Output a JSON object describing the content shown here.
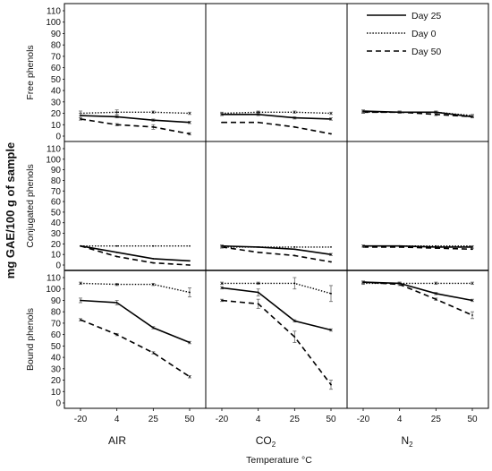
{
  "chart_data": {
    "type": "line",
    "ylabel": "mg GAE/100 g of sample",
    "xlabel": "Temperature °C",
    "categories": [
      "-20",
      "4",
      "25",
      "50"
    ],
    "yticks": [
      0,
      10,
      20,
      30,
      40,
      50,
      60,
      70,
      80,
      90,
      100,
      110
    ],
    "ylim": [
      0,
      110
    ],
    "atmospheres": [
      {
        "name": "AIR",
        "base": "AIR",
        "sub": ""
      },
      {
        "name": "CO2",
        "base": "CO",
        "sub": "2"
      },
      {
        "name": "N2",
        "base": "N",
        "sub": "2"
      }
    ],
    "rows": [
      "Free phenols",
      "Conjugated phenols",
      "Bound phenols"
    ],
    "legend": [
      "Day 25",
      "Day 0",
      "Day 50"
    ],
    "legend_position": "top-right",
    "series_styles": {
      "Day 25": {
        "dash": "solid",
        "width": 1.6
      },
      "Day 0": {
        "dash": "dotted",
        "width": 1.4
      },
      "Day 50": {
        "dash": "dashed",
        "width": 1.6
      }
    },
    "panels": [
      {
        "row": "Free phenols",
        "atmosphere": "AIR",
        "series": [
          {
            "name": "Day 25",
            "values": [
              18,
              17,
              14,
              12
            ],
            "errors": [
              2,
              1,
              1,
              1
            ]
          },
          {
            "name": "Day 0",
            "values": [
              20,
              21,
              21,
              20
            ],
            "errors": [
              2,
              2,
              1,
              1
            ]
          },
          {
            "name": "Day 50",
            "values": [
              15,
              10,
              8,
              2
            ],
            "errors": [
              1,
              1,
              2,
              1
            ]
          }
        ]
      },
      {
        "row": "Free phenols",
        "atmosphere": "CO2",
        "series": [
          {
            "name": "Day 25",
            "values": [
              19,
              19,
              16,
              15
            ],
            "errors": [
              1,
              1,
              1,
              1
            ]
          },
          {
            "name": "Day 0",
            "values": [
              20,
              21,
              21,
              20
            ],
            "errors": [
              1,
              1,
              1,
              1
            ]
          },
          {
            "name": "Day 50",
            "values": [
              12,
              12,
              8,
              2
            ],
            "errors": [
              0,
              0,
              0,
              0
            ]
          }
        ]
      },
      {
        "row": "Free phenols",
        "atmosphere": "N2",
        "series": [
          {
            "name": "Day 25",
            "values": [
              22,
              21,
              21,
              17
            ],
            "errors": [
              1,
              1,
              1,
              1
            ]
          },
          {
            "name": "Day 0",
            "values": [
              21,
              21,
              21,
              18
            ],
            "errors": [
              1,
              1,
              1,
              1
            ]
          },
          {
            "name": "Day 50",
            "values": [
              21,
              21,
              19,
              17
            ],
            "errors": [
              1,
              1,
              1,
              1
            ]
          }
        ]
      },
      {
        "row": "Conjugated phenols",
        "atmosphere": "AIR",
        "series": [
          {
            "name": "Day 25",
            "values": [
              18,
              12,
              6,
              4
            ],
            "errors": [
              0,
              0,
              0,
              0
            ]
          },
          {
            "name": "Day 0",
            "values": [
              18,
              18,
              18,
              18
            ],
            "errors": [
              0,
              0,
              0,
              0
            ]
          },
          {
            "name": "Day 50",
            "values": [
              18,
              8,
              2,
              0
            ],
            "errors": [
              0,
              0,
              0,
              0
            ]
          }
        ]
      },
      {
        "row": "Conjugated phenols",
        "atmosphere": "CO2",
        "series": [
          {
            "name": "Day 25",
            "values": [
              18,
              17,
              15,
              10
            ],
            "errors": [
              1,
              0,
              0,
              1
            ]
          },
          {
            "name": "Day 0",
            "values": [
              17,
              17,
              17,
              17
            ],
            "errors": [
              1,
              0,
              0,
              0
            ]
          },
          {
            "name": "Day 50",
            "values": [
              17,
              12,
              9,
              3
            ],
            "errors": [
              0,
              0,
              0,
              0
            ]
          }
        ]
      },
      {
        "row": "Conjugated phenols",
        "atmosphere": "N2",
        "series": [
          {
            "name": "Day 25",
            "values": [
              18,
              18,
              17,
              17
            ],
            "errors": [
              1,
              0,
              0,
              1
            ]
          },
          {
            "name": "Day 0",
            "values": [
              18,
              18,
              18,
              18
            ],
            "errors": [
              0,
              0,
              0,
              0
            ]
          },
          {
            "name": "Day 50",
            "values": [
              17,
              17,
              16,
              15
            ],
            "errors": [
              0,
              0,
              0,
              0
            ]
          }
        ]
      },
      {
        "row": "Bound phenols",
        "atmosphere": "AIR",
        "series": [
          {
            "name": "Day 25",
            "values": [
              90,
              88,
              66,
              53
            ],
            "errors": [
              2,
              2,
              1,
              1
            ]
          },
          {
            "name": "Day 0",
            "values": [
              105,
              104,
              104,
              97
            ],
            "errors": [
              1,
              1,
              1,
              4
            ]
          },
          {
            "name": "Day 50",
            "values": [
              73,
              60,
              44,
              23
            ],
            "errors": [
              1,
              1,
              1,
              1
            ]
          }
        ]
      },
      {
        "row": "Bound phenols",
        "atmosphere": "CO2",
        "series": [
          {
            "name": "Day 25",
            "values": [
              101,
              97,
              72,
              64
            ],
            "errors": [
              1,
              3,
              1,
              1
            ]
          },
          {
            "name": "Day 0",
            "values": [
              105,
              105,
              105,
              96
            ],
            "errors": [
              1,
              1,
              5,
              7
            ]
          },
          {
            "name": "Day 50",
            "values": [
              90,
              87,
              58,
              16
            ],
            "errors": [
              1,
              4,
              5,
              4
            ]
          }
        ]
      },
      {
        "row": "Bound phenols",
        "atmosphere": "N2",
        "series": [
          {
            "name": "Day 25",
            "values": [
              106,
              105,
              96,
              90
            ],
            "errors": [
              1,
              1,
              1,
              1
            ]
          },
          {
            "name": "Day 0",
            "values": [
              105,
              105,
              105,
              105
            ],
            "errors": [
              1,
              1,
              1,
              1
            ]
          },
          {
            "name": "Day 50",
            "values": [
              106,
              104,
              91,
              77
            ],
            "errors": [
              1,
              1,
              1,
              3
            ]
          }
        ]
      }
    ]
  }
}
